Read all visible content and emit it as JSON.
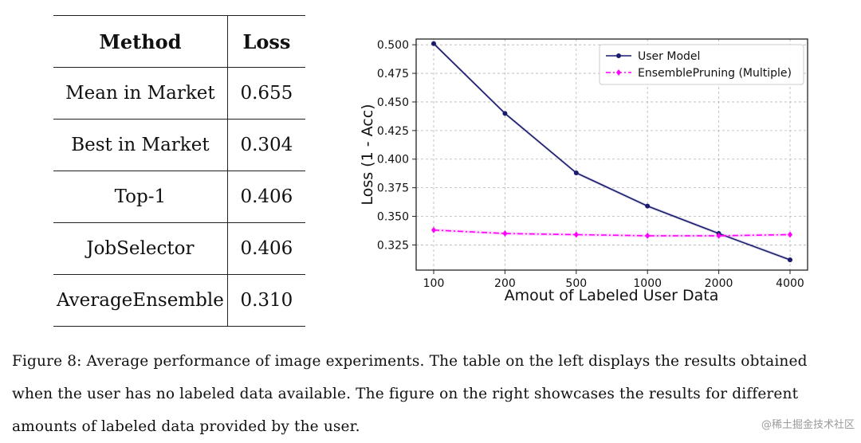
{
  "table": {
    "headers": {
      "method": "Method",
      "loss": "Loss"
    },
    "rows": [
      {
        "method": "Mean in Market",
        "loss": "0.655"
      },
      {
        "method": "Best in Market",
        "loss": "0.304"
      },
      {
        "method": "Top-1",
        "loss": "0.406"
      },
      {
        "method": "JobSelector",
        "loss": "0.406"
      },
      {
        "method": "AverageEnsemble",
        "loss": "0.310"
      }
    ]
  },
  "chart_data": {
    "type": "line",
    "categories": [
      "100",
      "200",
      "500",
      "1000",
      "2000",
      "4000"
    ],
    "series": [
      {
        "name": "User Model",
        "color": "#1a1a6e",
        "marker": "circle",
        "values": [
          0.501,
          0.44,
          0.388,
          0.359,
          0.335,
          0.312
        ]
      },
      {
        "name": "EnsemblePruning (Multiple)",
        "color": "#ff00ff",
        "marker": "diamond",
        "values": [
          0.338,
          0.335,
          0.334,
          0.333,
          0.333,
          0.334
        ]
      }
    ],
    "xlabel": "Amout of Labeled User Data",
    "ylabel": "Loss (1 - Acc)",
    "ylim": [
      0.303,
      0.505
    ],
    "yticks": [
      0.325,
      0.35,
      0.375,
      0.4,
      0.425,
      0.45,
      0.475,
      0.5
    ],
    "ytick_labels": [
      "0.325",
      "0.350",
      "0.375",
      "0.400",
      "0.425",
      "0.450",
      "0.475",
      "0.500"
    ],
    "grid": true,
    "legend_position": "top-right"
  },
  "caption": {
    "text": "Figure 8: Average performance of image experiments. The table on the left displays the results obtained when the user has no labeled data available. The figure on the right showcases the results for different amounts of labeled data provided by the user."
  },
  "watermark": "@稀土掘金技术社区"
}
